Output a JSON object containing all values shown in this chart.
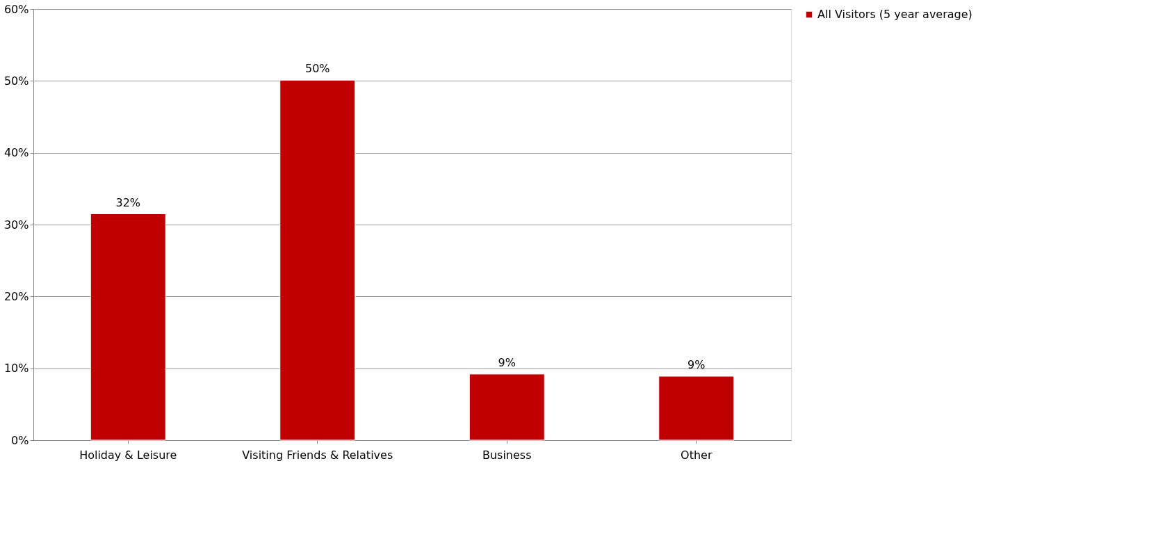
{
  "chart_data": {
    "type": "bar",
    "categories": [
      "Holiday & Leisure",
      "Visiting Friends & Relatives",
      "Business",
      "Other"
    ],
    "series": [
      {
        "name": "All Visitors (5 year average)",
        "color": "#c00000",
        "values": [
          31.5,
          50.1,
          9.2,
          8.9
        ],
        "value_labels": [
          "32%",
          "50%",
          "9%",
          "9%"
        ]
      }
    ],
    "ylim": [
      0,
      60
    ],
    "yticks": [
      {
        "value": 0,
        "label": "0%"
      },
      {
        "value": 10,
        "label": "10%"
      },
      {
        "value": 20,
        "label": "20%"
      },
      {
        "value": 30,
        "label": "30%"
      },
      {
        "value": 40,
        "label": "40%"
      },
      {
        "value": 50,
        "label": "50%"
      },
      {
        "value": 60,
        "label": "60%"
      }
    ],
    "grid": "y",
    "legend": "right"
  }
}
